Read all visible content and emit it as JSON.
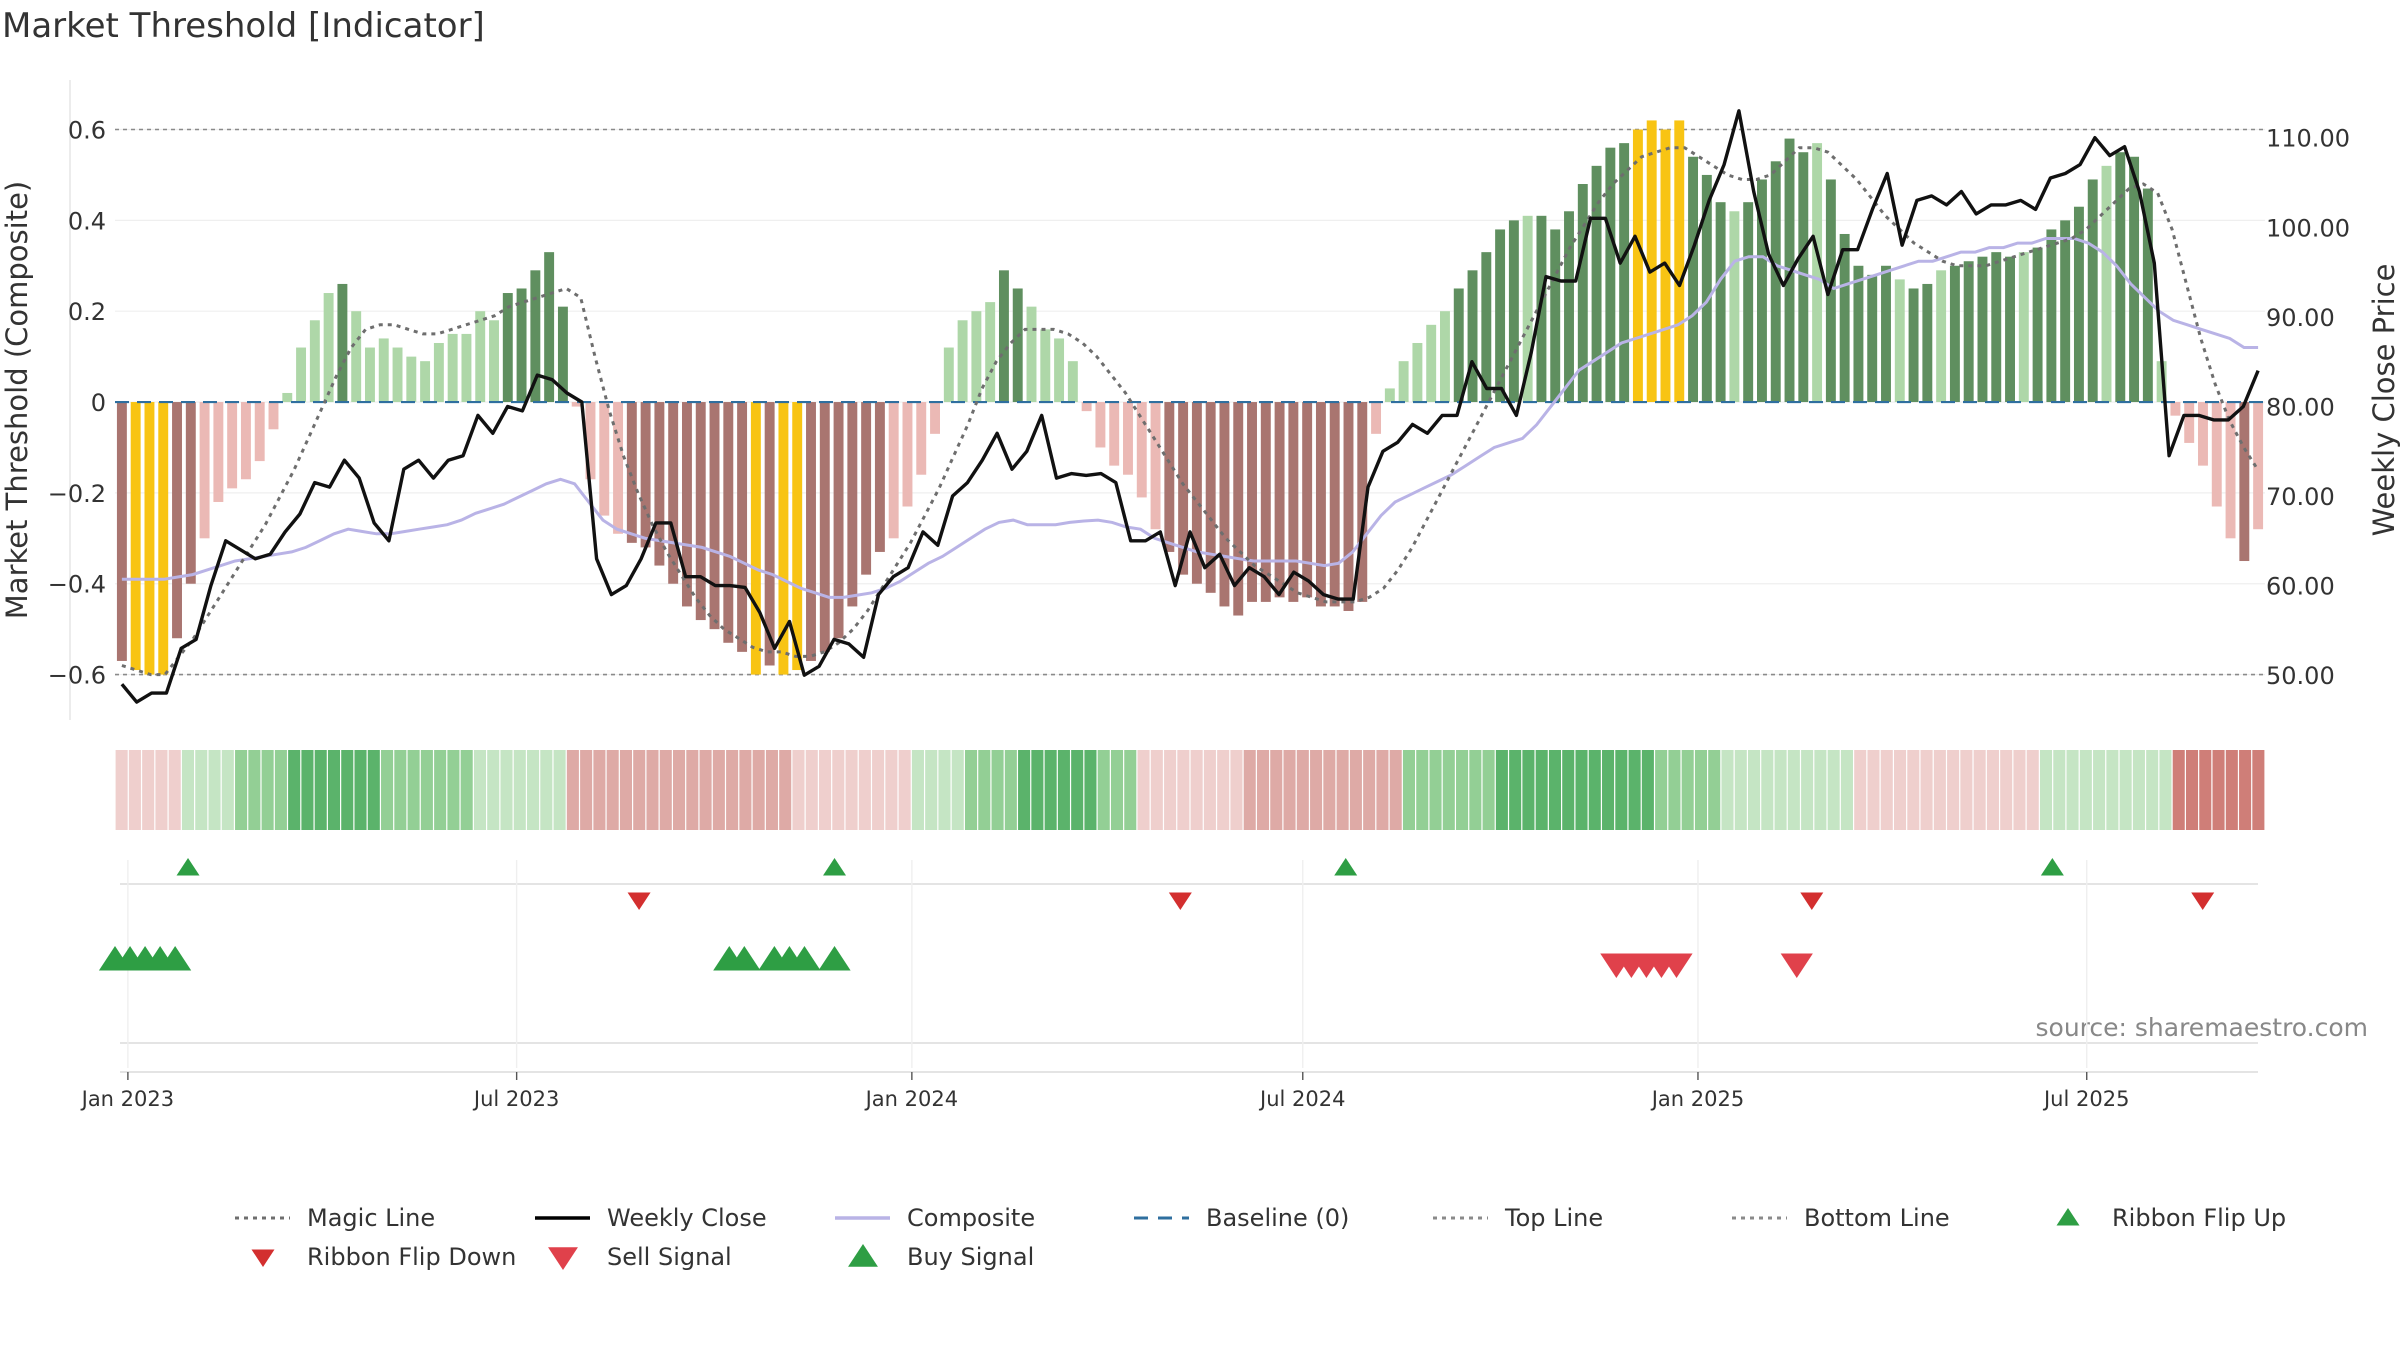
{
  "chart_data": {
    "type": "bar",
    "title": "Market Threshold [Indicator]",
    "ylabel": "Market Threshold (Composite)",
    "y2label": "Weekly Close Price",
    "source": "source: sharemaestro.com",
    "ylim": [
      -0.7,
      0.72
    ],
    "y2lim": [
      45.0,
      117.0
    ],
    "yticks": [
      0.6,
      0.4,
      0.2,
      0,
      -0.2,
      -0.4,
      -0.6
    ],
    "ytick_labels": [
      "0.6",
      "0.4",
      "0.2",
      "0",
      "−0.2",
      "−0.4",
      "−0.6"
    ],
    "y2ticks": [
      110,
      100,
      90,
      80,
      70,
      60,
      50
    ],
    "y2tick_labels": [
      "110.00",
      "100.00",
      "90.00",
      "80.00",
      "70.00",
      "60.00",
      "50.00"
    ],
    "x_start": "2022-12-26",
    "x_end": "2025-09-22",
    "xticks": [
      "2023-01-01",
      "2023-07-01",
      "2024-01-01",
      "2024-07-01",
      "2025-01-01",
      "2025-07-01"
    ],
    "xtick_labels": [
      "Jan 2023",
      "Jul 2023",
      "Jan 2024",
      "Jul 2024",
      "Jan 2025",
      "Jul 2025"
    ],
    "top_line": 0.6,
    "bottom_line": -0.6,
    "grid": true,
    "legend_position": "bottom",
    "composite_histogram": [
      -0.57,
      -0.59,
      -0.6,
      -0.6,
      -0.52,
      -0.4,
      -0.3,
      -0.22,
      -0.19,
      -0.17,
      -0.13,
      -0.06,
      0.02,
      0.12,
      0.18,
      0.24,
      0.26,
      0.2,
      0.12,
      0.14,
      0.12,
      0.1,
      0.09,
      0.13,
      0.15,
      0.15,
      0.2,
      0.18,
      0.24,
      0.25,
      0.29,
      0.33,
      0.21,
      -0.01,
      -0.17,
      -0.25,
      -0.29,
      -0.31,
      -0.32,
      -0.36,
      -0.4,
      -0.45,
      -0.48,
      -0.5,
      -0.53,
      -0.55,
      -0.6,
      -0.58,
      -0.6,
      -0.59,
      -0.57,
      -0.55,
      -0.52,
      -0.45,
      -0.38,
      -0.33,
      -0.3,
      -0.23,
      -0.16,
      -0.07,
      0.12,
      0.18,
      0.2,
      0.22,
      0.29,
      0.25,
      0.21,
      0.16,
      0.14,
      0.09,
      -0.02,
      -0.1,
      -0.14,
      -0.16,
      -0.21,
      -0.28,
      -0.33,
      -0.38,
      -0.4,
      -0.42,
      -0.45,
      -0.47,
      -0.44,
      -0.44,
      -0.43,
      -0.44,
      -0.43,
      -0.45,
      -0.45,
      -0.46,
      -0.44,
      -0.07,
      0.03,
      0.09,
      0.13,
      0.17,
      0.2,
      0.25,
      0.29,
      0.33,
      0.38,
      0.4,
      0.41,
      0.41,
      0.38,
      0.42,
      0.48,
      0.52,
      0.56,
      0.57,
      0.6,
      0.62,
      0.6,
      0.62,
      0.54,
      0.5,
      0.44,
      0.42,
      0.44,
      0.49,
      0.53,
      0.58,
      0.55,
      0.57,
      0.49,
      0.37,
      0.3,
      0.28,
      0.3,
      0.27,
      0.25,
      0.26,
      0.29,
      0.3,
      0.31,
      0.32,
      0.33,
      0.32,
      0.33,
      0.34,
      0.38,
      0.4,
      0.43,
      0.49,
      0.52,
      0.55,
      0.54,
      0.47,
      0.09,
      -0.03,
      -0.09,
      -0.14,
      -0.23,
      -0.3,
      -0.35,
      -0.28
    ],
    "weekly_close": [
      49.0,
      47.0,
      48.0,
      48.0,
      53.0,
      54.0,
      60.0,
      65.0,
      64.0,
      63.0,
      63.5,
      66.0,
      68.0,
      71.5,
      71.0,
      74.0,
      72.0,
      67.0,
      65.0,
      73.0,
      74.0,
      72.0,
      74.0,
      74.5,
      79.0,
      77.0,
      80.0,
      79.5,
      83.5,
      83.0,
      81.5,
      80.5,
      63.0,
      59.0,
      60.0,
      63.0,
      67.0,
      67.0,
      61.0,
      61.0,
      60.0,
      60.0,
      59.8,
      57.0,
      53.0,
      56.0,
      50.0,
      51.0,
      54.0,
      53.5,
      52.0,
      59.0,
      61.0,
      62.0,
      66.0,
      64.5,
      70.0,
      71.5,
      74.0,
      77.0,
      73.0,
      75.0,
      79.0,
      72.0,
      72.5,
      72.3,
      72.5,
      71.5,
      65.0,
      65.0,
      66.0,
      60.0,
      66.0,
      62.0,
      63.5,
      60.0,
      62.0,
      61.0,
      59.0,
      61.5,
      60.5,
      59.0,
      58.5,
      58.5,
      71.0,
      75.0,
      76.0,
      78.0,
      77.0,
      79.0,
      79.0,
      85.0,
      82.0,
      82.0,
      79.0,
      86.0,
      94.5,
      94.0,
      94.0,
      101.0,
      101.0,
      96.0,
      99.0,
      95.0,
      96.0,
      93.5,
      98.0,
      103.0,
      107.0,
      113.0,
      104.0,
      97.0,
      93.5,
      96.5,
      99.0,
      92.5,
      97.5,
      97.5,
      102.0,
      106.0,
      98.0,
      103.0,
      103.5,
      102.5,
      104.0,
      101.5,
      102.5,
      102.5,
      103.0,
      102.0,
      105.5,
      106.0,
      107.0,
      110.0,
      108.0,
      109.0,
      104.0,
      96.0,
      74.5,
      79.0,
      79.0,
      78.5,
      78.5,
      80.0,
      84.0
    ],
    "weekly_close_note": "",
    "composite_line": [
      -0.39,
      -0.39,
      -0.39,
      -0.39,
      -0.385,
      -0.38,
      -0.37,
      -0.36,
      -0.35,
      -0.345,
      -0.34,
      -0.335,
      -0.33,
      -0.32,
      -0.305,
      -0.29,
      -0.28,
      -0.285,
      -0.29,
      -0.29,
      -0.285,
      -0.28,
      -0.275,
      -0.27,
      -0.26,
      -0.245,
      -0.235,
      -0.225,
      -0.21,
      -0.195,
      -0.18,
      -0.17,
      -0.18,
      -0.22,
      -0.26,
      -0.28,
      -0.29,
      -0.3,
      -0.305,
      -0.31,
      -0.315,
      -0.32,
      -0.33,
      -0.34,
      -0.355,
      -0.37,
      -0.38,
      -0.395,
      -0.41,
      -0.42,
      -0.43,
      -0.43,
      -0.425,
      -0.42,
      -0.41,
      -0.395,
      -0.375,
      -0.355,
      -0.34,
      -0.32,
      -0.3,
      -0.28,
      -0.265,
      -0.26,
      -0.27,
      -0.27,
      -0.27,
      -0.265,
      -0.262,
      -0.26,
      -0.265,
      -0.275,
      -0.28,
      -0.3,
      -0.31,
      -0.32,
      -0.33,
      -0.335,
      -0.34,
      -0.345,
      -0.35,
      -0.35,
      -0.35,
      -0.35,
      -0.355,
      -0.36,
      -0.355,
      -0.33,
      -0.29,
      -0.25,
      -0.22,
      -0.205,
      -0.19,
      -0.175,
      -0.16,
      -0.14,
      -0.12,
      -0.1,
      -0.09,
      -0.08,
      -0.05,
      -0.01,
      0.03,
      0.07,
      0.09,
      0.11,
      0.13,
      0.14,
      0.15,
      0.16,
      0.17,
      0.19,
      0.22,
      0.27,
      0.31,
      0.32,
      0.32,
      0.3,
      0.29,
      0.28,
      0.27,
      0.25,
      0.26,
      0.27,
      0.28,
      0.29,
      0.3,
      0.31,
      0.31,
      0.32,
      0.33,
      0.33,
      0.34,
      0.34,
      0.35,
      0.35,
      0.36,
      0.36,
      0.36,
      0.35,
      0.33,
      0.3,
      0.26,
      0.23,
      0.2,
      0.18,
      0.17,
      0.16,
      0.15,
      0.14,
      0.12,
      0.12
    ],
    "magic_line": [
      -0.58,
      -0.59,
      -0.6,
      -0.6,
      -0.56,
      -0.52,
      -0.47,
      -0.42,
      -0.37,
      -0.32,
      -0.27,
      -0.21,
      -0.15,
      -0.08,
      -0.01,
      0.06,
      0.12,
      0.16,
      0.17,
      0.17,
      0.16,
      0.15,
      0.15,
      0.16,
      0.17,
      0.18,
      0.19,
      0.21,
      0.22,
      0.23,
      0.24,
      0.25,
      0.23,
      0.1,
      -0.02,
      -0.12,
      -0.2,
      -0.27,
      -0.33,
      -0.38,
      -0.43,
      -0.47,
      -0.5,
      -0.52,
      -0.54,
      -0.55,
      -0.55,
      -0.56,
      -0.56,
      -0.55,
      -0.53,
      -0.5,
      -0.46,
      -0.41,
      -0.36,
      -0.31,
      -0.25,
      -0.19,
      -0.12,
      -0.05,
      0.03,
      0.09,
      0.13,
      0.16,
      0.16,
      0.16,
      0.15,
      0.13,
      0.1,
      0.06,
      0.02,
      -0.03,
      -0.08,
      -0.13,
      -0.18,
      -0.22,
      -0.26,
      -0.3,
      -0.33,
      -0.36,
      -0.38,
      -0.4,
      -0.42,
      -0.43,
      -0.44,
      -0.44,
      -0.44,
      -0.43,
      -0.41,
      -0.37,
      -0.32,
      -0.26,
      -0.2,
      -0.14,
      -0.08,
      -0.02,
      0.04,
      0.1,
      0.16,
      0.22,
      0.28,
      0.34,
      0.39,
      0.44,
      0.48,
      0.51,
      0.54,
      0.55,
      0.56,
      0.56,
      0.54,
      0.52,
      0.5,
      0.49,
      0.49,
      0.5,
      0.53,
      0.56,
      0.56,
      0.55,
      0.52,
      0.49,
      0.45,
      0.41,
      0.38,
      0.35,
      0.33,
      0.31,
      0.3,
      0.3,
      0.3,
      0.31,
      0.32,
      0.33,
      0.34,
      0.35,
      0.36,
      0.38,
      0.41,
      0.44,
      0.47,
      0.48,
      0.46,
      0.38,
      0.26,
      0.14,
      0.04,
      -0.04,
      -0.1,
      -0.15
    ],
    "ribbon": {
      "note": "weekly regime strip: + = bullish (green), - = bearish (red); magnitude 1-3 = intensity",
      "values": [
        -1,
        -1,
        -1,
        -1,
        -1,
        1,
        1,
        1,
        1,
        2,
        2,
        2,
        2,
        3,
        3,
        3,
        3,
        3,
        3,
        3,
        2,
        2,
        2,
        2,
        2,
        2,
        2,
        1,
        1,
        1,
        1,
        1,
        1,
        1,
        -2,
        -2,
        -2,
        -2,
        -2,
        -2,
        -2,
        -2,
        -2,
        -2,
        -2,
        -2,
        -2,
        -2,
        -2,
        -2,
        -2,
        -1,
        -1,
        -1,
        -1,
        -1,
        -1,
        -1,
        -1,
        -1,
        1,
        1,
        1,
        1,
        2,
        2,
        2,
        2,
        3,
        3,
        3,
        3,
        3,
        3,
        2,
        2,
        2,
        -1,
        -1,
        -1,
        -1,
        -1,
        -1,
        -1,
        -1,
        -2,
        -2,
        -2,
        -2,
        -2,
        -2,
        -2,
        -2,
        -2,
        -2,
        -2,
        -2,
        2,
        2,
        2,
        2,
        2,
        2,
        2,
        3,
        3,
        3,
        3,
        3,
        3,
        3,
        3,
        3,
        3,
        3,
        3,
        2,
        2,
        2,
        2,
        2,
        1,
        1,
        1,
        1,
        1,
        1,
        1,
        1,
        1,
        1,
        -1,
        -1,
        -1,
        -1,
        -1,
        -1,
        -1,
        -1,
        -1,
        -1,
        -1,
        -1,
        -1,
        -1,
        1,
        1,
        1,
        1,
        1,
        1,
        1,
        1,
        1,
        1,
        -3,
        -3,
        -3,
        -3,
        -3,
        -3,
        -3
      ]
    },
    "ribbon_flip_up": [
      "2023-01-29",
      "2023-11-26",
      "2024-07-21",
      "2025-06-15"
    ],
    "ribbon_flip_down": [
      "2023-08-27",
      "2024-05-05",
      "2025-02-23",
      "2025-08-24"
    ],
    "buy_signals": [
      "2022-12-26",
      "2023-01-02",
      "2023-01-09",
      "2023-01-16",
      "2023-01-23",
      "2023-10-08",
      "2023-10-15",
      "2023-10-29",
      "2023-11-05",
      "2023-11-12",
      "2023-11-26"
    ],
    "sell_signals": [
      "2024-11-24",
      "2024-12-01",
      "2024-12-08",
      "2024-12-15",
      "2024-12-22",
      "2025-02-16"
    ],
    "legend": [
      {
        "label": "Magic Line",
        "kind": "dotted",
        "color": "#6e6e6e"
      },
      {
        "label": "Weekly Close",
        "kind": "solid",
        "color": "#000000"
      },
      {
        "label": "Composite",
        "kind": "solid",
        "color": "#b9b3e6"
      },
      {
        "label": "Baseline (0)",
        "kind": "dashed",
        "color": "#2f6f9f"
      },
      {
        "label": "Top Line",
        "kind": "dotted",
        "color": "#8a8a8a"
      },
      {
        "label": "Bottom Line",
        "kind": "dotted",
        "color": "#8a8a8a"
      },
      {
        "label": "Ribbon Flip Up",
        "kind": "tri-up",
        "color": "#2e9e44"
      },
      {
        "label": "Ribbon Flip Down",
        "kind": "tri-down",
        "color": "#d32f2f"
      },
      {
        "label": "Sell Signal",
        "kind": "tri-down-lg",
        "color": "#e0414b"
      },
      {
        "label": "Buy Signal",
        "kind": "tri-up-lg",
        "color": "#2e9e44"
      }
    ],
    "colors": {
      "strong_up": "#5f8f5f",
      "weak_up": "#aed7a8",
      "strong_down": "#a97570",
      "weak_down": "#ebb9b5",
      "extreme": "#f8c413"
    }
  }
}
